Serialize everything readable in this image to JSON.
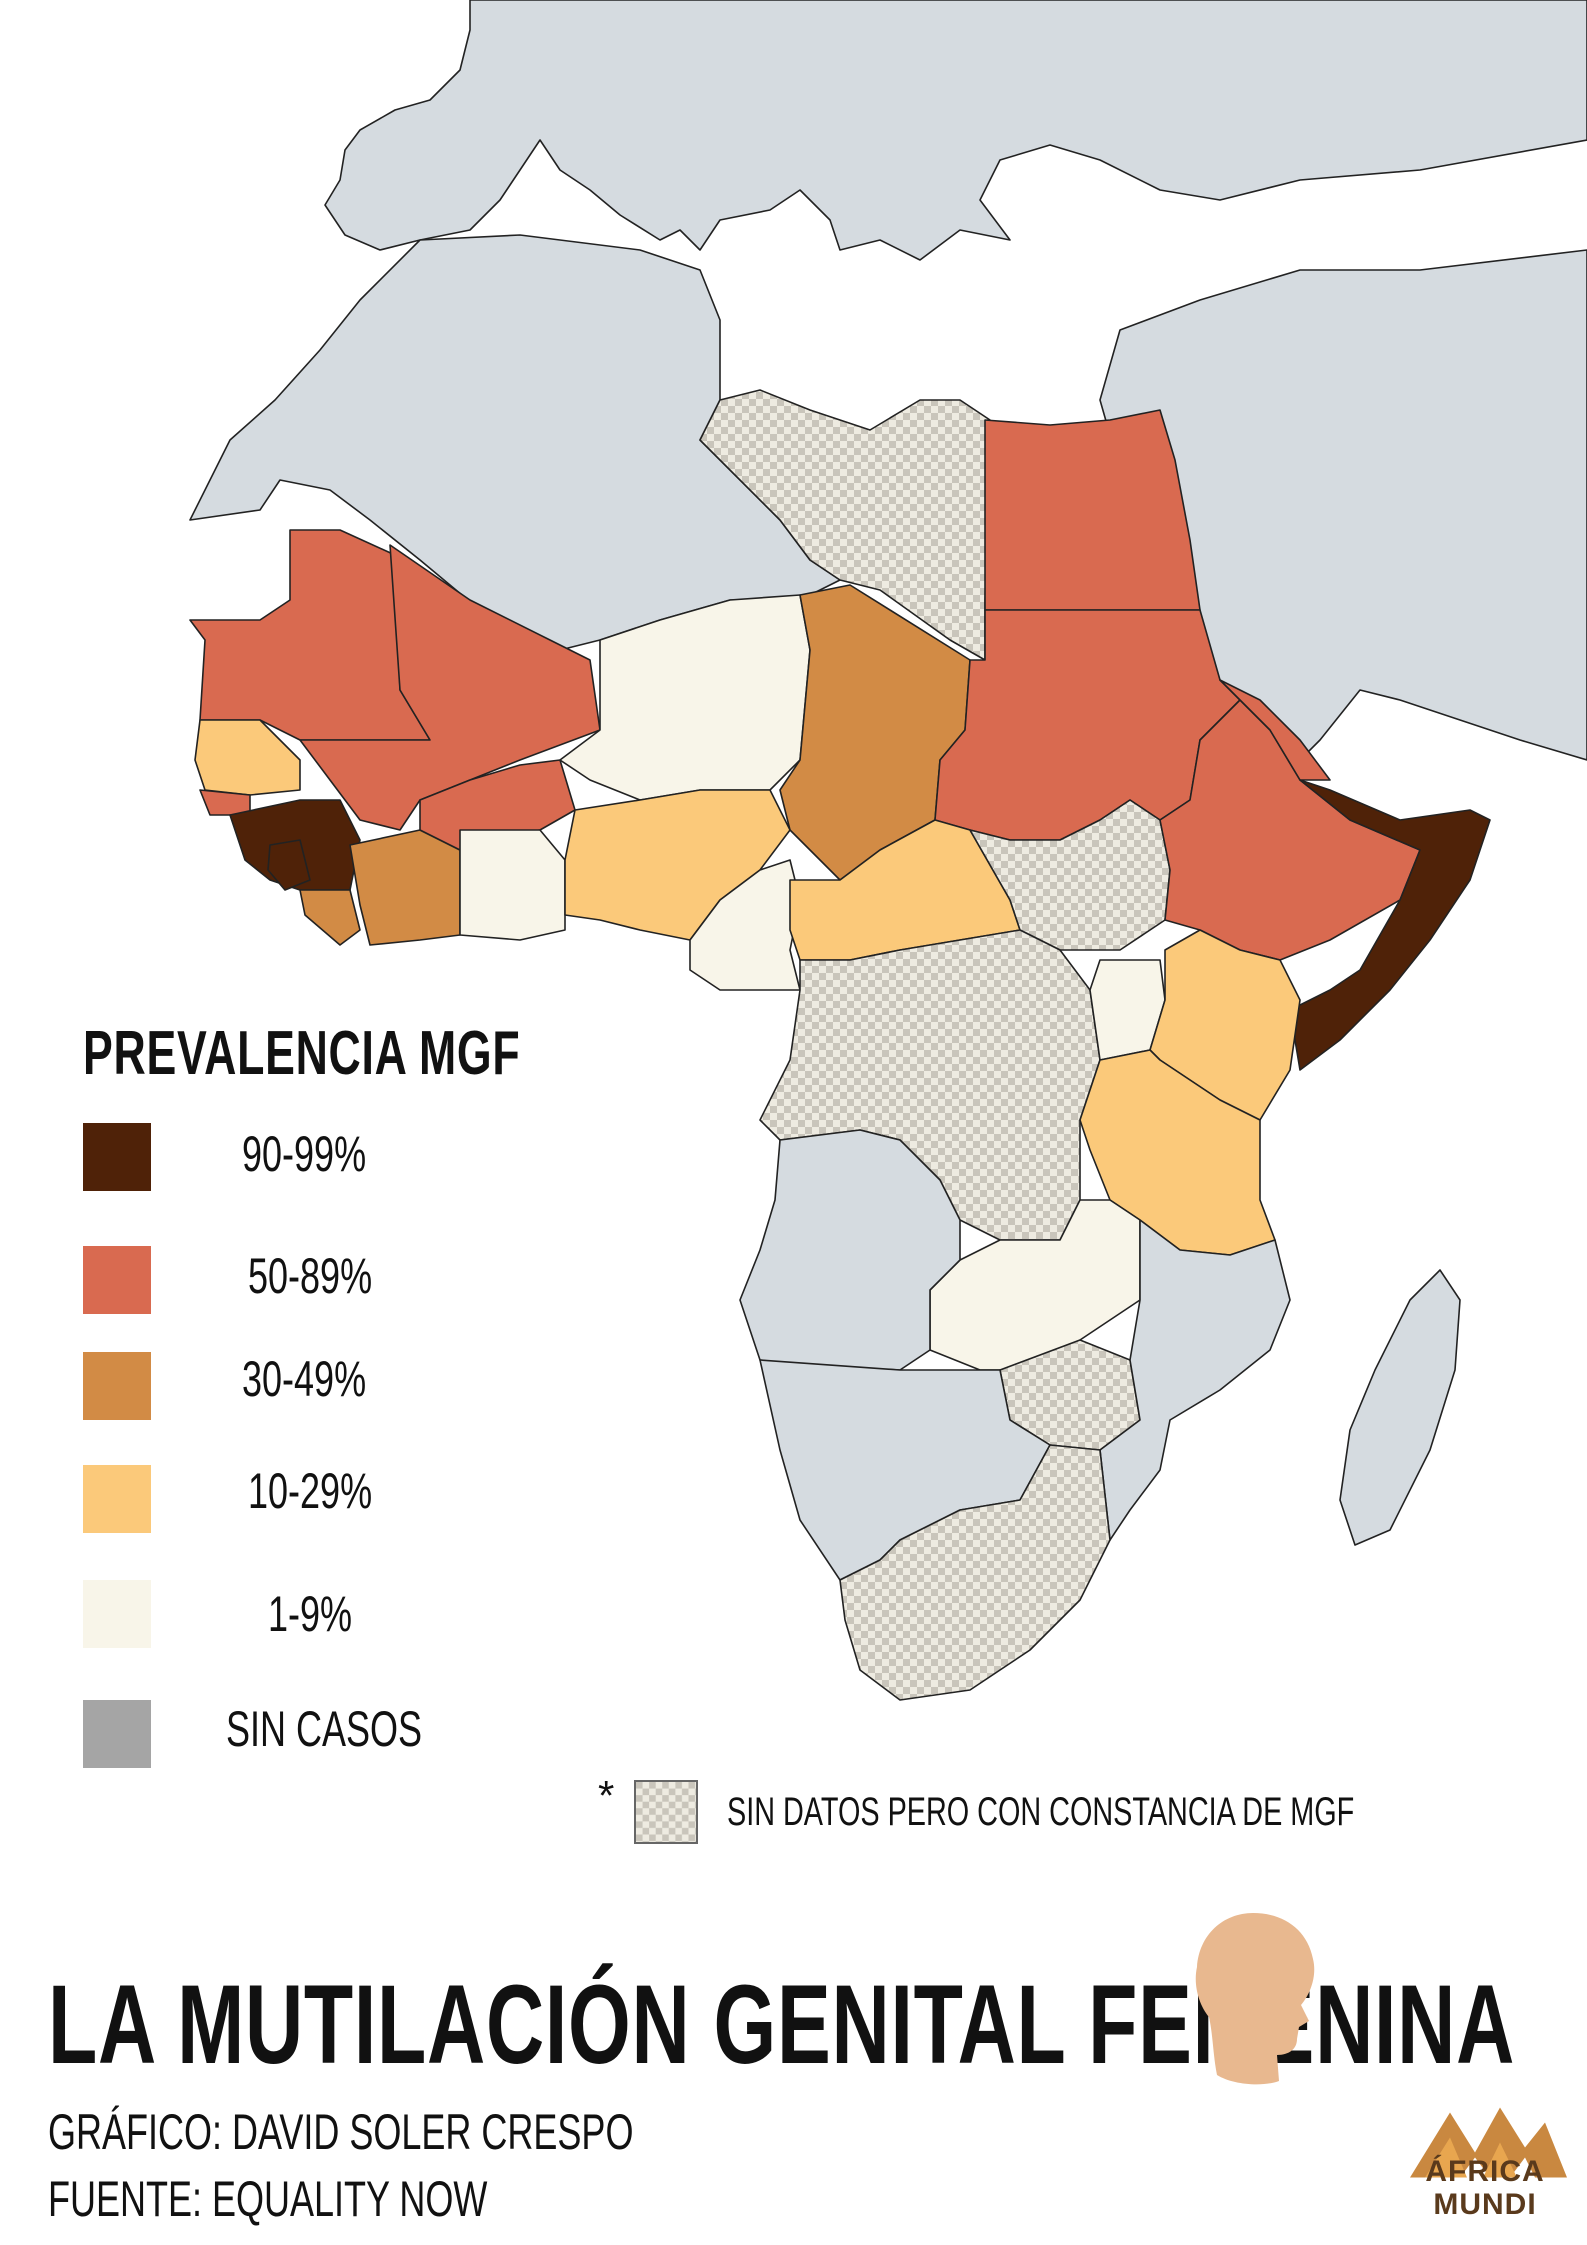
{
  "colors": {
    "sea": "#ffffff",
    "no_cases_land": "#d5dbe0",
    "border": "#222222",
    "c90_99": "#4f2208",
    "c50_89": "#d96a50",
    "c30_49": "#d28b45",
    "c10_29": "#fbc97a",
    "c1_9": "#f8f5e9",
    "no_cases_swatch": "#a5a5a5",
    "nodata_base": "#eeebe1",
    "nodata_check": "#c9c5bb",
    "logo_head": "#e8b88f",
    "logo_brand": "#c98840"
  },
  "legend": {
    "title": "PREVALENCIA MGF",
    "items": [
      {
        "label": "90-99%",
        "color": "#4f2208"
      },
      {
        "label": "50-89%",
        "color": "#d96a50"
      },
      {
        "label": "30-49%",
        "color": "#d28b45"
      },
      {
        "label": "10-29%",
        "color": "#fbc97a"
      },
      {
        "label": "1-9%",
        "color": "#f8f5e9"
      },
      {
        "label": "SIN CASOS",
        "color": "#a5a5a5"
      }
    ],
    "no_data_mark": "*",
    "no_data_label": "SIN DATOS PERO CON CONSTANCIA DE MGF"
  },
  "title": "LA MUTILACIÓN GENITAL FEMENINA",
  "credits": {
    "graphic": "GRÁFICO: DAVID SOLER CRESPO",
    "source": "FUENTE: EQUALITY NOW"
  },
  "logo": {
    "icon": "woman-profile-icon",
    "brand_icon": "mountains-icon",
    "brand_line1": "ÁFRICA",
    "brand_line2": "MUNDI"
  }
}
